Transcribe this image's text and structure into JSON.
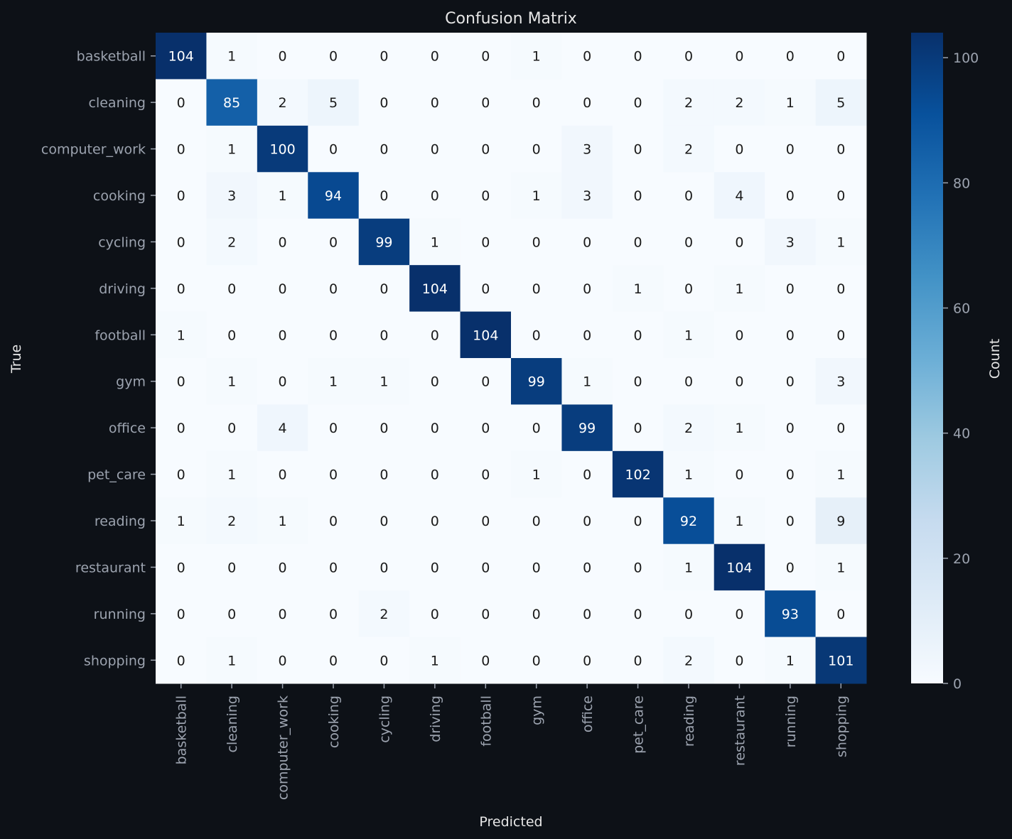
{
  "chart_data": {
    "type": "heatmap",
    "title": "Confusion Matrix",
    "xlabel": "Predicted",
    "ylabel": "True",
    "colorbar_label": "Count",
    "x_categories": [
      "basketball",
      "cleaning",
      "computer_work",
      "cooking",
      "cycling",
      "driving",
      "football",
      "gym",
      "office",
      "pet_care",
      "reading",
      "restaurant",
      "running",
      "shopping"
    ],
    "y_categories": [
      "basketball",
      "cleaning",
      "computer_work",
      "cooking",
      "cycling",
      "driving",
      "football",
      "gym",
      "office",
      "pet_care",
      "reading",
      "restaurant",
      "running",
      "shopping"
    ],
    "values": [
      [
        104,
        1,
        0,
        0,
        0,
        0,
        0,
        1,
        0,
        0,
        0,
        0,
        0,
        0
      ],
      [
        0,
        85,
        2,
        5,
        0,
        0,
        0,
        0,
        0,
        0,
        2,
        2,
        1,
        5
      ],
      [
        0,
        1,
        100,
        0,
        0,
        0,
        0,
        0,
        3,
        0,
        2,
        0,
        0,
        0
      ],
      [
        0,
        3,
        1,
        94,
        0,
        0,
        0,
        1,
        3,
        0,
        0,
        4,
        0,
        0
      ],
      [
        0,
        2,
        0,
        0,
        99,
        1,
        0,
        0,
        0,
        0,
        0,
        0,
        3,
        1
      ],
      [
        0,
        0,
        0,
        0,
        0,
        104,
        0,
        0,
        0,
        1,
        0,
        1,
        0,
        0
      ],
      [
        1,
        0,
        0,
        0,
        0,
        0,
        104,
        0,
        0,
        0,
        1,
        0,
        0,
        0
      ],
      [
        0,
        1,
        0,
        1,
        1,
        0,
        0,
        99,
        1,
        0,
        0,
        0,
        0,
        3
      ],
      [
        0,
        0,
        4,
        0,
        0,
        0,
        0,
        0,
        99,
        0,
        2,
        1,
        0,
        0
      ],
      [
        0,
        1,
        0,
        0,
        0,
        0,
        0,
        1,
        0,
        102,
        1,
        0,
        0,
        1
      ],
      [
        1,
        2,
        1,
        0,
        0,
        0,
        0,
        0,
        0,
        0,
        92,
        1,
        0,
        9
      ],
      [
        0,
        0,
        0,
        0,
        0,
        0,
        0,
        0,
        0,
        0,
        1,
        104,
        0,
        1
      ],
      [
        0,
        0,
        0,
        0,
        2,
        0,
        0,
        0,
        0,
        0,
        0,
        0,
        93,
        0
      ],
      [
        0,
        1,
        0,
        0,
        0,
        1,
        0,
        0,
        0,
        0,
        2,
        0,
        1,
        101
      ]
    ],
    "color_range": [
      0,
      104
    ],
    "colorbar_ticks": [
      0,
      20,
      40,
      60,
      80,
      100
    ],
    "colormap": "Blues",
    "colors": {
      "background": "#0d1117",
      "title_text": "#e6e6e6",
      "tick_text": "#9ca3af",
      "low_cell": "#f7fbff",
      "high_cell": "#08306b",
      "cell_text_dark": "#1a1a1a",
      "cell_text_light": "#ffffff"
    }
  }
}
